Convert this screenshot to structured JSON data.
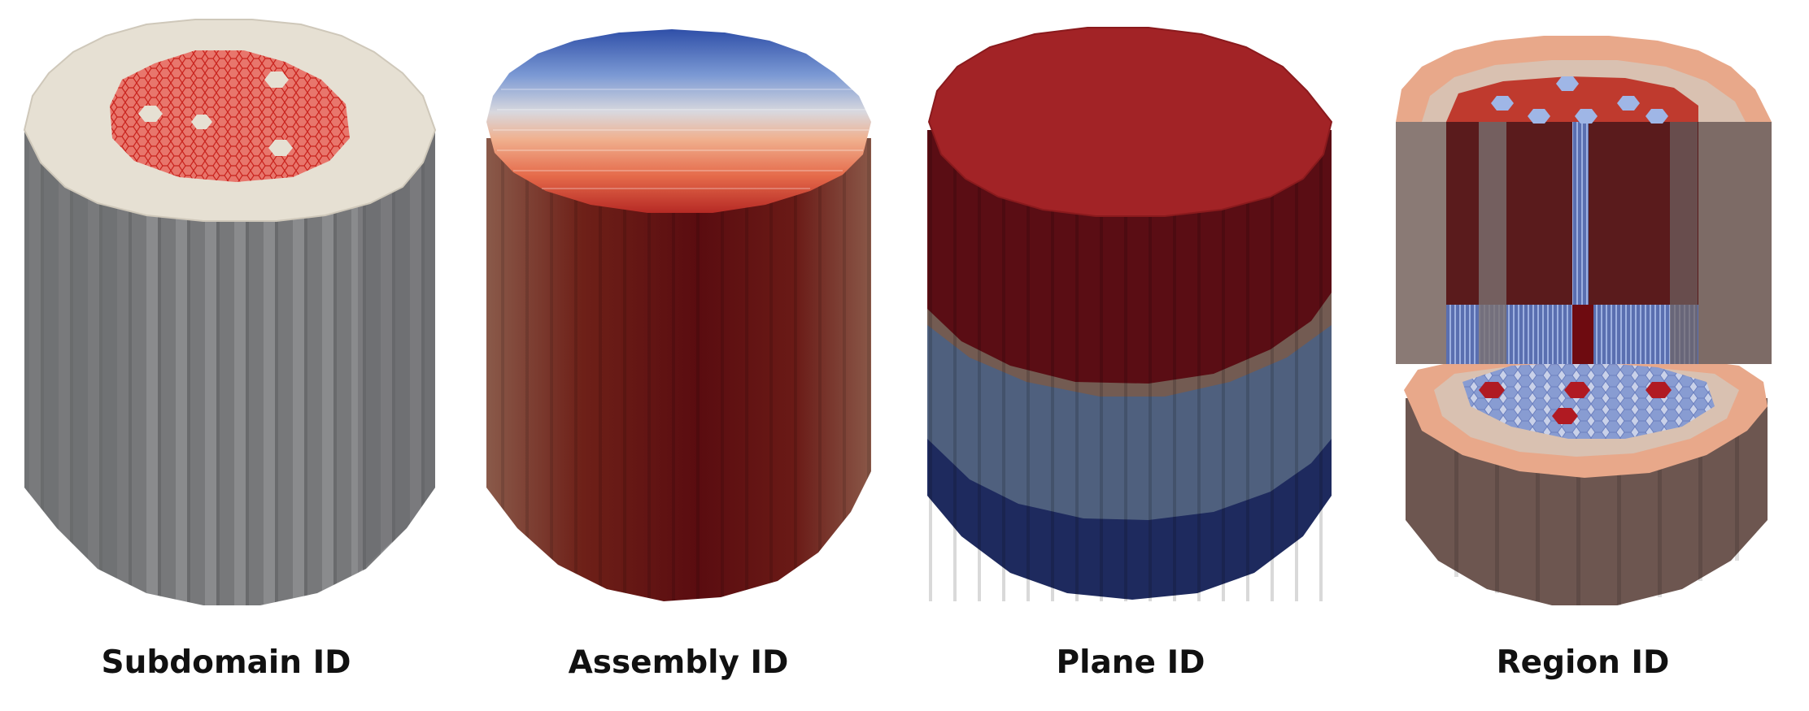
{
  "panels": [
    {
      "caption": "Subdomain ID",
      "color_scheme": "gray body with red hexagonal core on top"
    },
    {
      "caption": "Assembly ID",
      "color_scheme": "blue-to-red gradient across assemblies"
    },
    {
      "caption": "Plane ID",
      "color_scheme": "red top planes, gray-blue middle, navy bottom"
    },
    {
      "caption": "Region ID",
      "color_scheme": "cutaway with tan reflector, red/blue fuel regions"
    }
  ],
  "colors": {
    "gray_body": "#7a7b7d",
    "cream_top": "#e6e0d3",
    "red": "#a42424",
    "dark_red": "#5a0d12",
    "blue": "#3a57a8",
    "navy": "#1c2757",
    "slate": "#4d5d7a",
    "tan": "#d9bfae",
    "peach": "#e9a584",
    "brown": "#6d5650"
  }
}
